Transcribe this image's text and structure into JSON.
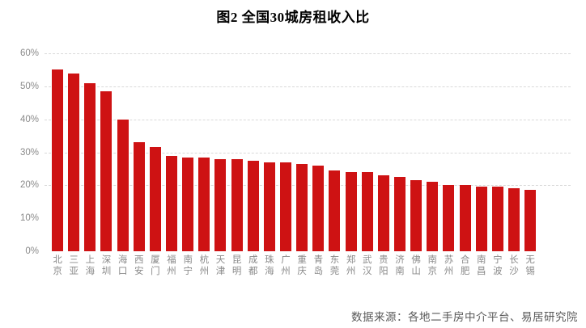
{
  "chart_data": {
    "type": "bar",
    "title": "图2  全国30城房租收入比",
    "xlabel": "",
    "ylabel": "",
    "categories": [
      "北京",
      "三亚",
      "上海",
      "深圳",
      "海口",
      "西安",
      "厦门",
      "福州",
      "南宁",
      "杭州",
      "天津",
      "昆明",
      "成都",
      "珠海",
      "广州",
      "重庆",
      "青岛",
      "东莞",
      "郑州",
      "武汉",
      "贵阳",
      "济南",
      "佛山",
      "南京",
      "苏州",
      "合肥",
      "南昌",
      "宁波",
      "长沙",
      "无锡"
    ],
    "values": [
      55,
      54,
      51,
      48.5,
      40,
      33,
      31.5,
      29,
      28.5,
      28.5,
      28,
      28,
      27.5,
      27,
      27,
      26.5,
      26,
      24.5,
      24,
      24,
      23,
      22.5,
      21.5,
      21,
      20,
      20,
      19.5,
      19.5,
      19,
      18.7
    ],
    "value_unit": "%",
    "ylim": [
      0,
      60
    ],
    "y_ticks": [
      0,
      10,
      20,
      30,
      40,
      50,
      60
    ],
    "y_tick_labels": [
      "0%",
      "10%",
      "20%",
      "30%",
      "40%",
      "50%",
      "60%"
    ],
    "gridline_values": [
      20,
      30,
      40,
      50,
      60
    ],
    "grid_style": "dashed",
    "legend_position": "none"
  },
  "colors": {
    "bar": "#ce1213",
    "gridline": "#d9d9d9",
    "axis_text": "#8a8a8a",
    "title_text": "#000000",
    "source_text": "#595959"
  },
  "source_note": "数据来源：各地二手房中介平台、易居研究院"
}
